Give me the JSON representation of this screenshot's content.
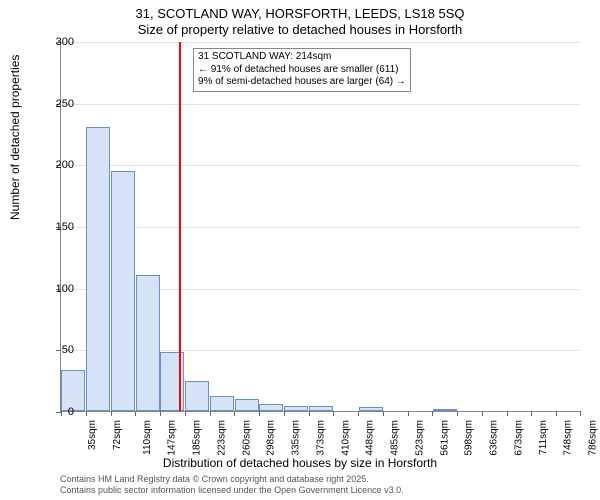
{
  "title_line1": "31, SCOTLAND WAY, HORSFORTH, LEEDS, LS18 5SQ",
  "title_line2": "Size of property relative to detached houses in Horsforth",
  "ylabel": "Number of detached properties",
  "xlabel": "Distribution of detached houses by size in Horsforth",
  "credits_line1": "Contains HM Land Registry data © Crown copyright and database right 2025.",
  "credits_line2": "Contains public sector information licensed under the Open Government Licence v3.0.",
  "chart": {
    "type": "histogram",
    "ylim": [
      0,
      300
    ],
    "ytick_step": 50,
    "bar_fill": "#d6e2f5",
    "bar_stroke": "#6b8fc9",
    "background_color": "#ffffff",
    "grid_color": "#888888",
    "grid_opacity": 0.25,
    "ref_line_color": "#ff0000",
    "ref_line_x": 214,
    "x_categories": [
      "35sqm",
      "72sqm",
      "110sqm",
      "147sqm",
      "185sqm",
      "223sqm",
      "260sqm",
      "298sqm",
      "335sqm",
      "373sqm",
      "410sqm",
      "448sqm",
      "485sqm",
      "523sqm",
      "561sqm",
      "598sqm",
      "636sqm",
      "673sqm",
      "711sqm",
      "748sqm",
      "786sqm"
    ],
    "x_numeric": [
      35,
      72,
      110,
      147,
      185,
      223,
      260,
      298,
      335,
      373,
      410,
      448,
      485,
      523,
      561,
      598,
      636,
      673,
      711,
      748,
      786
    ],
    "values": [
      33,
      230,
      195,
      110,
      48,
      24,
      12,
      10,
      6,
      4,
      4,
      0,
      3,
      0,
      0,
      2,
      0,
      0,
      0,
      0,
      0
    ],
    "bar_width_ratio": 0.97,
    "title_fontsize": 13,
    "label_fontsize": 12,
    "tick_fontsize": 11
  },
  "annotation": {
    "line1": "← 91% of detached houses are smaller (611)",
    "line2": "9% of semi-detached houses are larger (64) →",
    "header": "31 SCOTLAND WAY: 214sqm"
  }
}
